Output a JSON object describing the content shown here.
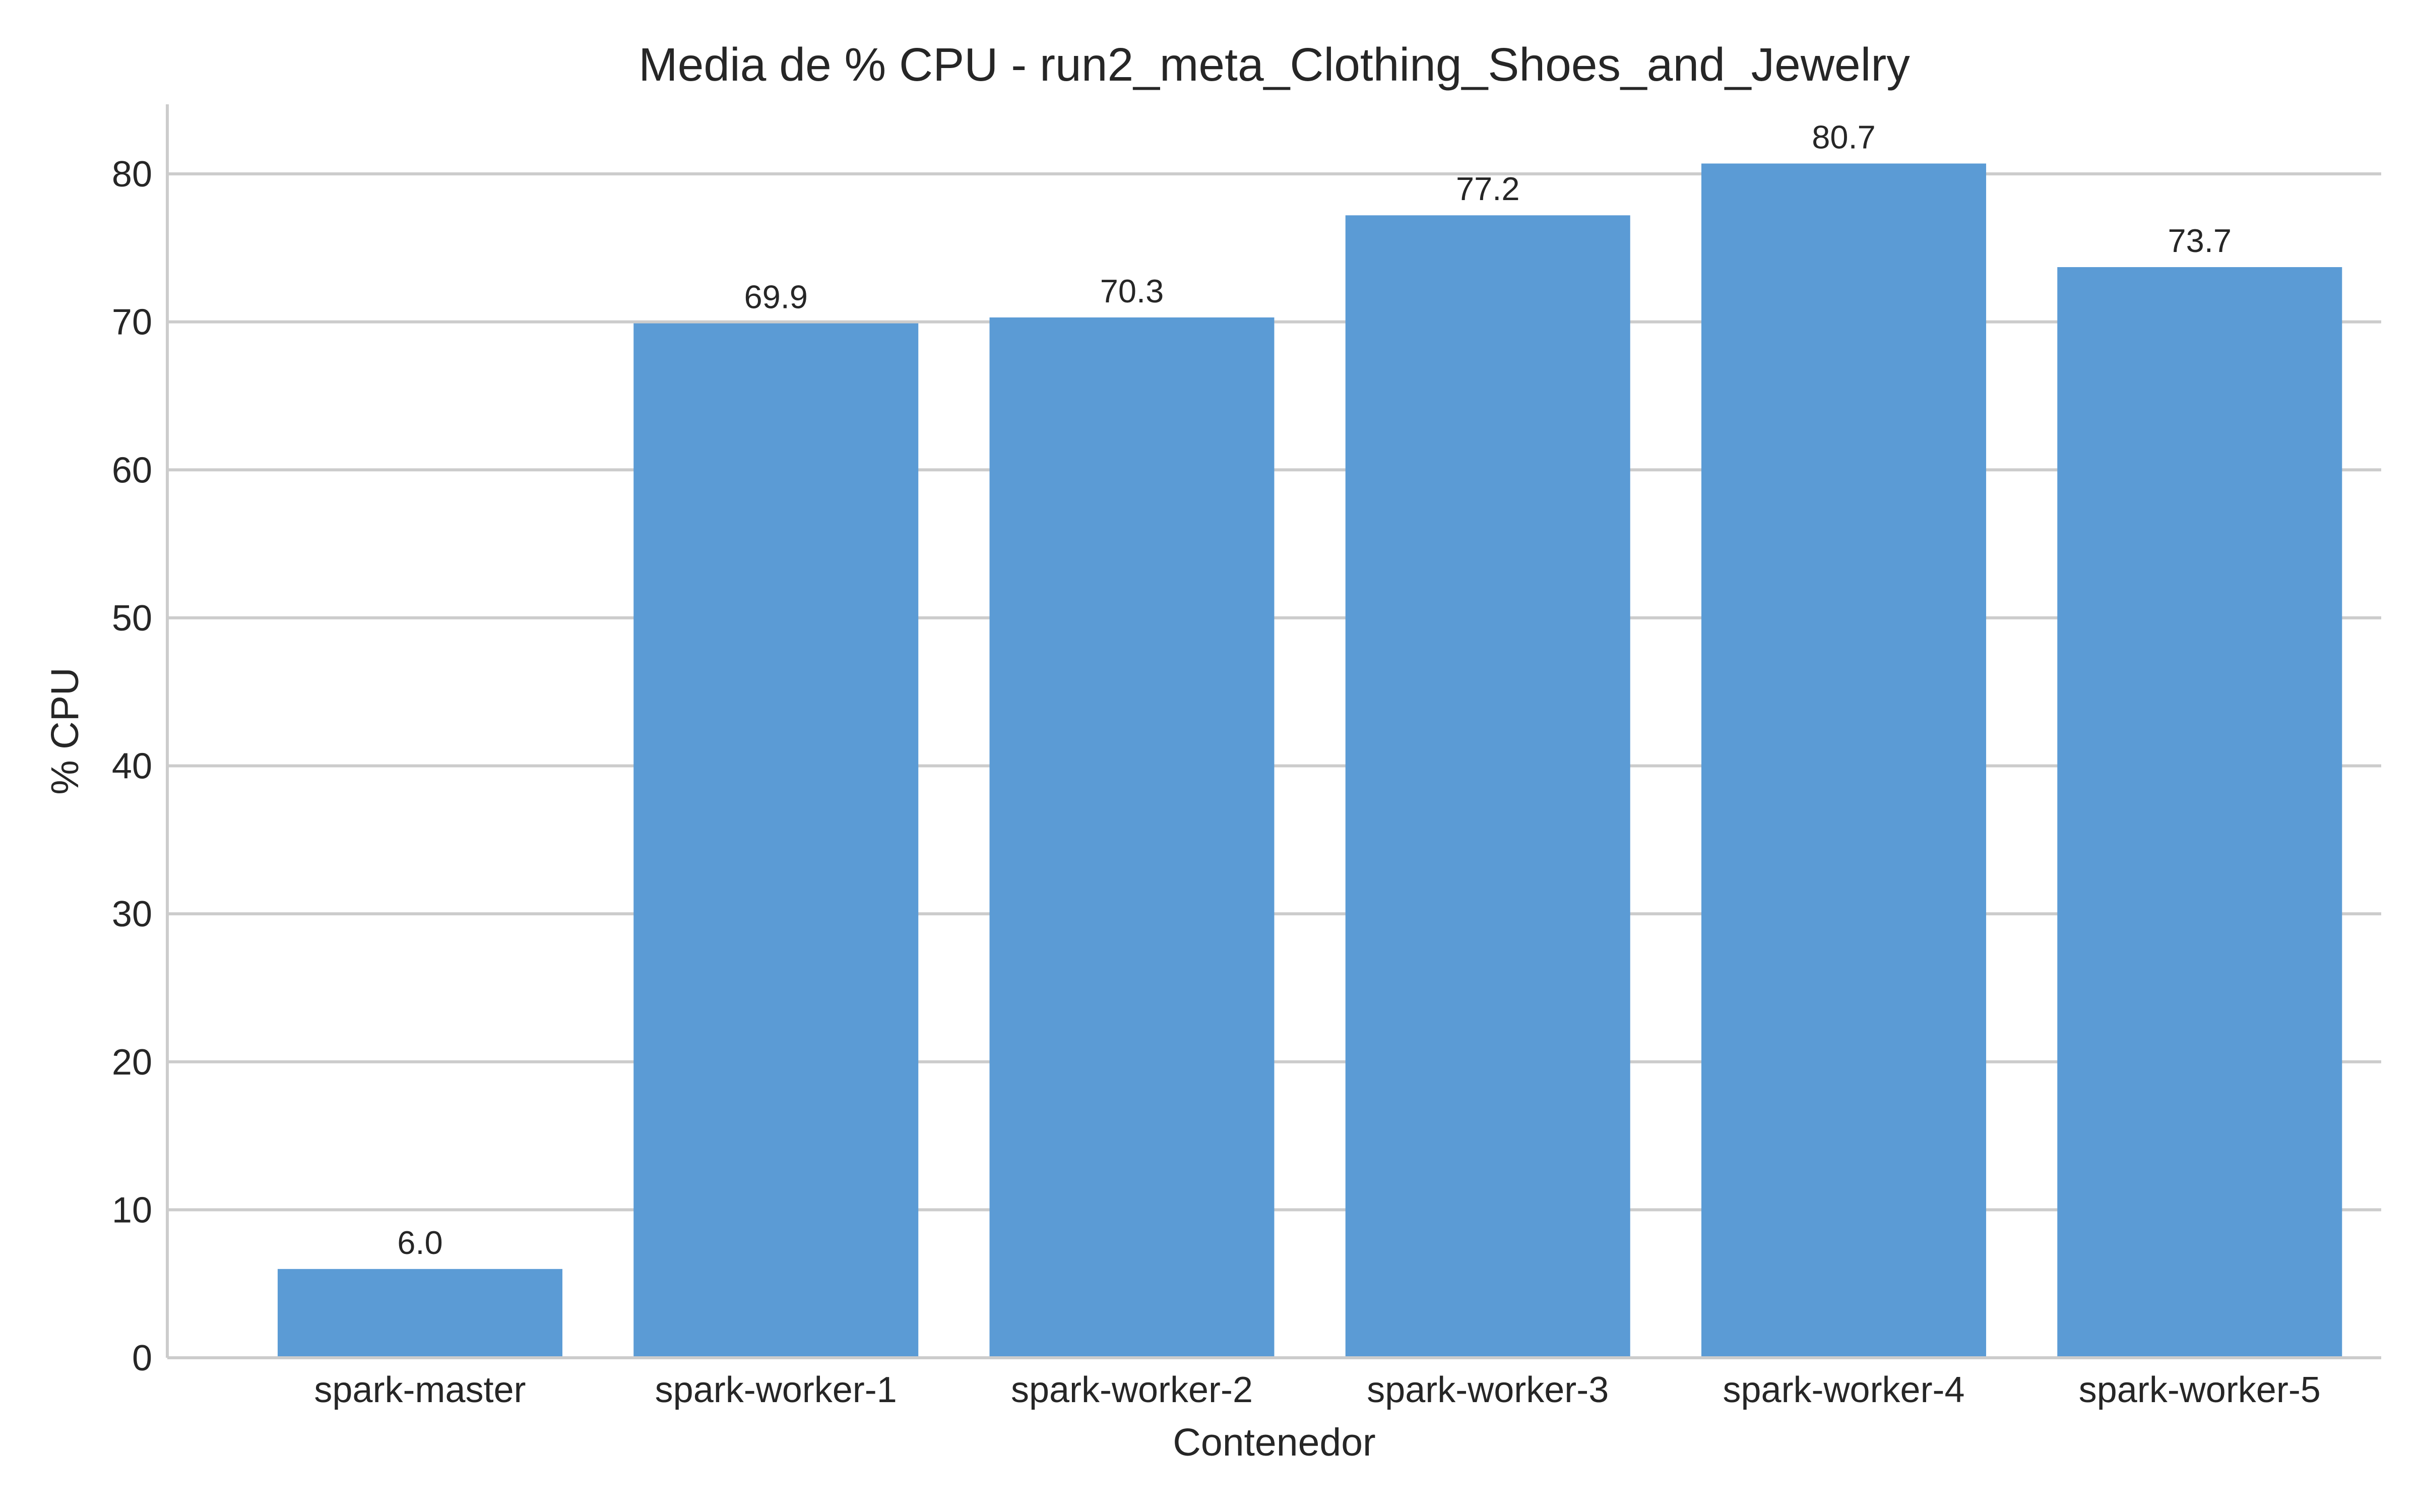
{
  "chart_data": {
    "type": "bar",
    "title": "Media de % CPU - run2_meta_Clothing_Shoes_and_Jewelry",
    "xlabel": "Contenedor",
    "ylabel": "% CPU",
    "categories": [
      "spark-master",
      "spark-worker-1",
      "spark-worker-2",
      "spark-worker-3",
      "spark-worker-4",
      "spark-worker-5"
    ],
    "values": [
      6.0,
      69.9,
      70.3,
      77.2,
      80.7,
      73.7
    ],
    "value_labels": [
      "6.0",
      "69.9",
      "70.3",
      "77.2",
      "80.7",
      "73.7"
    ],
    "yticks": [
      0,
      10,
      20,
      30,
      40,
      50,
      60,
      70,
      80
    ],
    "ytick_labels": [
      "0",
      "10",
      "20",
      "30",
      "40",
      "50",
      "60",
      "70",
      "80"
    ],
    "ylim": [
      0,
      84.7
    ],
    "grid": "horizontal",
    "legend": "none",
    "bar_color": "#5b9bd5",
    "grid_color": "#cccccc",
    "text_color": "#262626"
  }
}
